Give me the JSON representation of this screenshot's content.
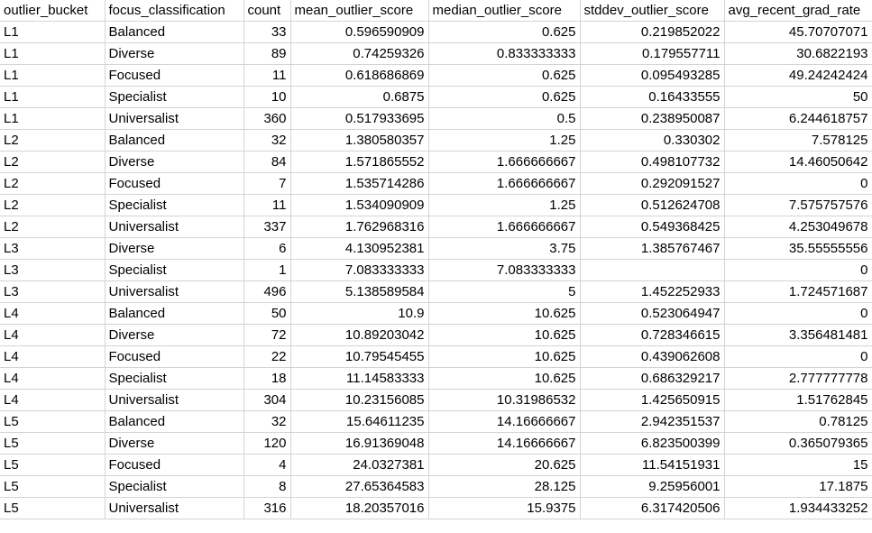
{
  "sheet": {
    "columns": [
      "outlier_bucket",
      "focus_classification",
      "count",
      "mean_outlier_score",
      "median_outlier_score",
      "stddev_outlier_score",
      "avg_recent_grad_rate"
    ],
    "rows": [
      [
        "L1",
        "Balanced",
        "33",
        "0.596590909",
        "0.625",
        "0.219852022",
        "45.70707071"
      ],
      [
        "L1",
        "Diverse",
        "89",
        "0.74259326",
        "0.833333333",
        "0.179557711",
        "30.6822193"
      ],
      [
        "L1",
        "Focused",
        "11",
        "0.618686869",
        "0.625",
        "0.095493285",
        "49.24242424"
      ],
      [
        "L1",
        "Specialist",
        "10",
        "0.6875",
        "0.625",
        "0.16433555",
        "50"
      ],
      [
        "L1",
        "Universalist",
        "360",
        "0.517933695",
        "0.5",
        "0.238950087",
        "6.244618757"
      ],
      [
        "L2",
        "Balanced",
        "32",
        "1.380580357",
        "1.25",
        "0.330302",
        "7.578125"
      ],
      [
        "L2",
        "Diverse",
        "84",
        "1.571865552",
        "1.666666667",
        "0.498107732",
        "14.46050642"
      ],
      [
        "L2",
        "Focused",
        "7",
        "1.535714286",
        "1.666666667",
        "0.292091527",
        "0"
      ],
      [
        "L2",
        "Specialist",
        "11",
        "1.534090909",
        "1.25",
        "0.512624708",
        "7.575757576"
      ],
      [
        "L2",
        "Universalist",
        "337",
        "1.762968316",
        "1.666666667",
        "0.549368425",
        "4.253049678"
      ],
      [
        "L3",
        "Diverse",
        "6",
        "4.130952381",
        "3.75",
        "1.385767467",
        "35.55555556"
      ],
      [
        "L3",
        "Specialist",
        "1",
        "7.083333333",
        "7.083333333",
        "",
        "0"
      ],
      [
        "L3",
        "Universalist",
        "496",
        "5.138589584",
        "5",
        "1.452252933",
        "1.724571687"
      ],
      [
        "L4",
        "Balanced",
        "50",
        "10.9",
        "10.625",
        "0.523064947",
        "0"
      ],
      [
        "L4",
        "Diverse",
        "72",
        "10.89203042",
        "10.625",
        "0.728346615",
        "3.356481481"
      ],
      [
        "L4",
        "Focused",
        "22",
        "10.79545455",
        "10.625",
        "0.439062608",
        "0"
      ],
      [
        "L4",
        "Specialist",
        "18",
        "11.14583333",
        "10.625",
        "0.686329217",
        "2.777777778"
      ],
      [
        "L4",
        "Universalist",
        "304",
        "10.23156085",
        "10.31986532",
        "1.425650915",
        "1.51762845"
      ],
      [
        "L5",
        "Balanced",
        "32",
        "15.64611235",
        "14.16666667",
        "2.942351537",
        "0.78125"
      ],
      [
        "L5",
        "Diverse",
        "120",
        "16.91369048",
        "14.16666667",
        "6.823500399",
        "0.365079365"
      ],
      [
        "L5",
        "Focused",
        "4",
        "24.0327381",
        "20.625",
        "11.54151931",
        "15"
      ],
      [
        "L5",
        "Specialist",
        "8",
        "27.65364583",
        "28.125",
        "9.25956001",
        "17.1875"
      ],
      [
        "L5",
        "Universalist",
        "316",
        "18.20357016",
        "15.9375",
        "6.317420506",
        "1.934433252"
      ]
    ]
  },
  "colors": {
    "gridline": "#d4d4d4",
    "text": "#000000",
    "background": "#ffffff"
  }
}
